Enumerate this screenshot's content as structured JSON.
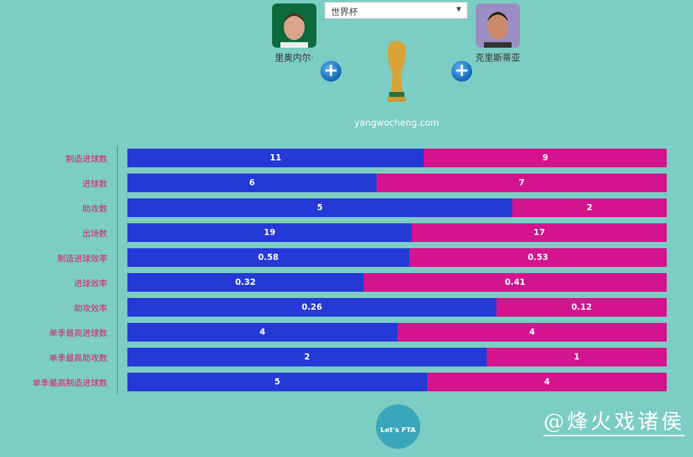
{
  "competition_select": {
    "value": "世界杯"
  },
  "players": [
    {
      "name": "里奥内尔·",
      "avatar_bg": "#0d6a3c"
    },
    {
      "name": "克里斯蒂亚",
      "avatar_bg": "#9a8fc4"
    }
  ],
  "site": "yangwocheng.com",
  "watermark": "@烽火戏诸侯",
  "logo_text": "Let's FTA",
  "chart_data": {
    "type": "bar",
    "orientation": "horizontal",
    "stacked_proportional": true,
    "categories": [
      "制造进球数",
      "进球数",
      "助攻数",
      "出场数",
      "制造进球效率",
      "进球效率",
      "助攻效率",
      "单季最高进球数",
      "单季最高助攻数",
      "单季最高制造进球数"
    ],
    "series": [
      {
        "name": "里奥内尔·",
        "color": "#2439d6",
        "values": [
          "11",
          "6",
          "5",
          "19",
          "0.58",
          "0.32",
          "0.26",
          "4",
          "2",
          "5"
        ]
      },
      {
        "name": "克里斯蒂亚",
        "color": "#d4138e",
        "values": [
          "9",
          "7",
          "2",
          "17",
          "0.53",
          "0.41",
          "0.12",
          "4",
          "1",
          "4"
        ]
      }
    ]
  }
}
